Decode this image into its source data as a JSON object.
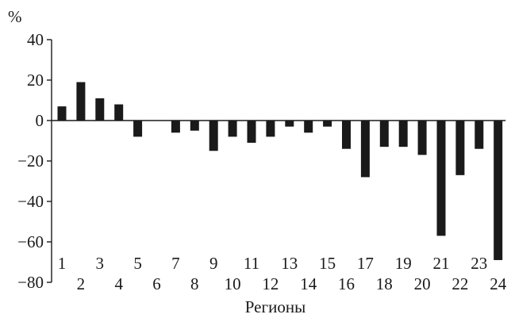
{
  "chart_data": {
    "type": "bar",
    "ylabel": "%",
    "xlabel": "Регионы",
    "ylim": [
      -80,
      40
    ],
    "yticks": [
      40,
      20,
      0,
      -20,
      -40,
      -60,
      -80
    ],
    "categories": [
      "1",
      "2",
      "3",
      "4",
      "5",
      "6",
      "7",
      "8",
      "9",
      "10",
      "11",
      "12",
      "13",
      "14",
      "15",
      "16",
      "17",
      "18",
      "19",
      "20",
      "21",
      "22",
      "23",
      "24"
    ],
    "values": [
      7,
      19,
      11,
      8,
      -8,
      0,
      -6,
      -5,
      -15,
      -8,
      -11,
      -8,
      -3,
      -6,
      -3,
      -14,
      -28,
      -13,
      -13,
      -17,
      -57,
      -27,
      -14,
      -69
    ],
    "grid": false,
    "legend": "none",
    "bar_color": "#1a1a1a"
  }
}
